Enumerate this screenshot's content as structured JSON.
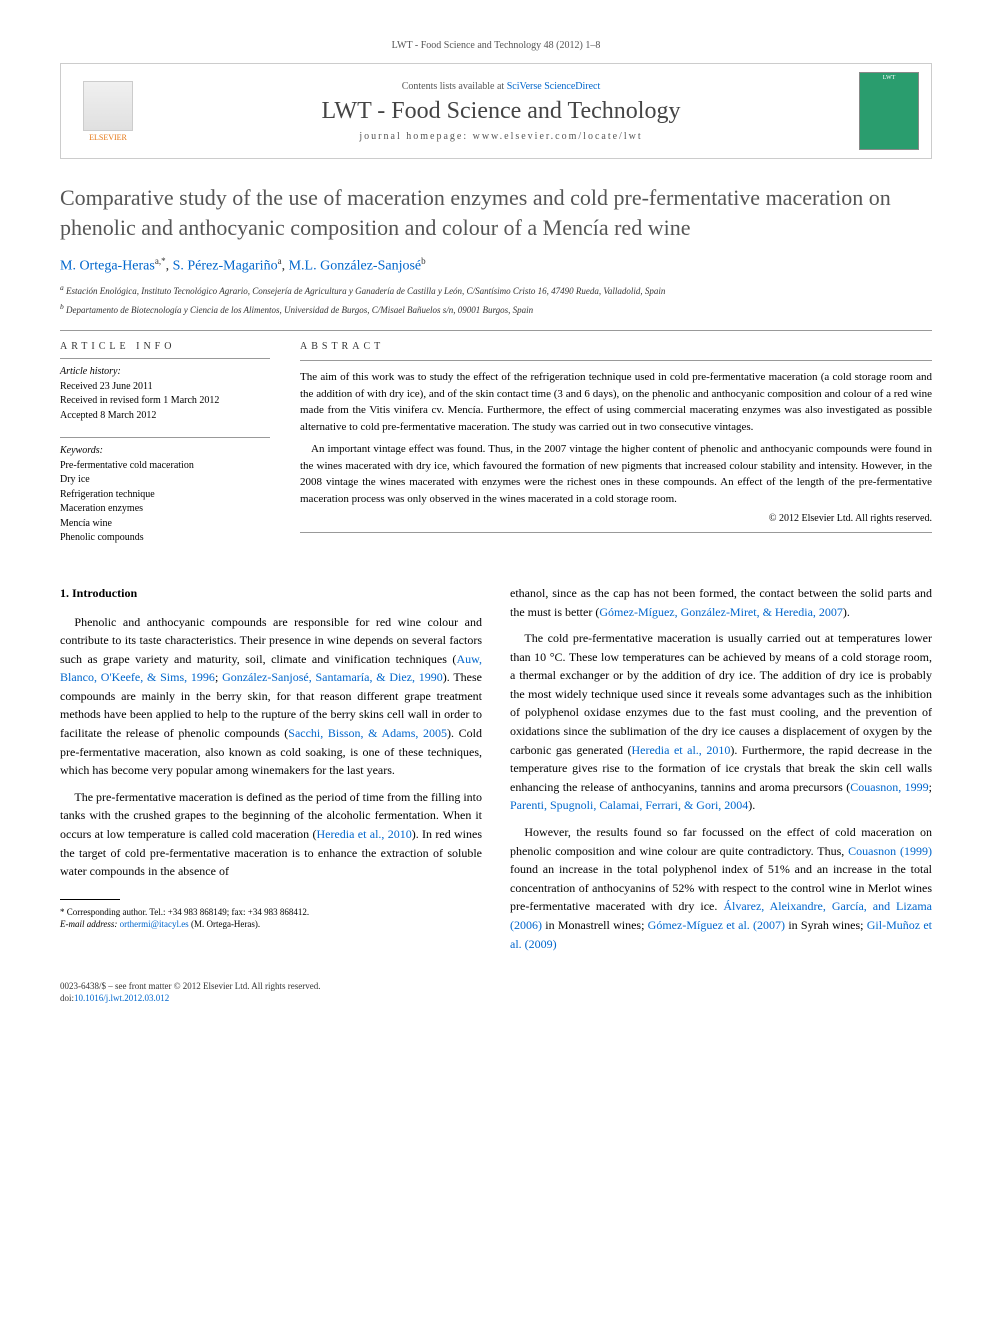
{
  "journal_ref": "LWT - Food Science and Technology 48 (2012) 1–8",
  "header": {
    "contents_prefix": "Contents lists available at ",
    "contents_link": "SciVerse ScienceDirect",
    "journal_name": "LWT - Food Science and Technology",
    "homepage_prefix": "journal homepage: ",
    "homepage_url": "www.elsevier.com/locate/lwt",
    "elsevier_label": "ELSEVIER",
    "cover_text": "LWT"
  },
  "title": "Comparative study of the use of maceration enzymes and cold pre-fermentative maceration on phenolic and anthocyanic composition and colour of a Mencía red wine",
  "authors_html": "M. Ortega-Heras",
  "author1": "M. Ortega-Heras",
  "author1_sup": "a,*",
  "author2": "S. Pérez-Magariño",
  "author2_sup": "a",
  "author3": "M.L. González-Sanjosé",
  "author3_sup": "b",
  "affil_a_sup": "a",
  "affil_a": "Estación Enológica, Instituto Tecnológico Agrario, Consejería de Agricultura y Ganadería de Castilla y León, C/Santísimo Cristo 16, 47490 Rueda, Valladolid, Spain",
  "affil_b_sup": "b",
  "affil_b": "Departamento de Biotecnología y Ciencia de los Alimentos, Universidad de Burgos, C/Misael Bañuelos s/n, 09001 Burgos, Spain",
  "article_info": {
    "heading": "ARTICLE INFO",
    "history_label": "Article history:",
    "received": "Received 23 June 2011",
    "revised": "Received in revised form 1 March 2012",
    "accepted": "Accepted 8 March 2012",
    "keywords_label": "Keywords:",
    "k1": "Pre-fermentative cold maceration",
    "k2": "Dry ice",
    "k3": "Refrigeration technique",
    "k4": "Maceration enzymes",
    "k5": "Mencía wine",
    "k6": "Phenolic compounds"
  },
  "abstract": {
    "heading": "ABSTRACT",
    "p1": "The aim of this work was to study the effect of the refrigeration technique used in cold pre-fermentative maceration (a cold storage room and the addition of with dry ice), and of the skin contact time (3 and 6 days), on the phenolic and anthocyanic composition and colour of a red wine made from the Vitis vinifera cv. Mencía. Furthermore, the effect of using commercial macerating enzymes was also investigated as possible alternative to cold pre-fermentative maceration. The study was carried out in two consecutive vintages.",
    "p2": "An important vintage effect was found. Thus, in the 2007 vintage the higher content of phenolic and anthocyanic compounds were found in the wines macerated with dry ice, which favoured the formation of new pigments that increased colour stability and intensity. However, in the 2008 vintage the wines macerated with enzymes were the richest ones in these compounds. An effect of the length of the pre-fermentative maceration process was only observed in the wines macerated in a cold storage room.",
    "copyright": "© 2012 Elsevier Ltd. All rights reserved."
  },
  "body": {
    "section_heading": "1. Introduction",
    "left_p1a": "Phenolic and anthocyanic compounds are responsible for red wine colour and contribute to its taste characteristics. Their presence in wine depends on several factors such as grape variety and maturity, soil, climate and vinification techniques (",
    "ref1": "Auw, Blanco, O'Keefe, & Sims, 1996",
    "left_p1b": "; ",
    "ref2": "González-Sanjosé, Santamaría, & Diez, 1990",
    "left_p1c": "). These compounds are mainly in the berry skin, for that reason different grape treatment methods have been applied to help to the rupture of the berry skins cell wall in order to facilitate the release of phenolic compounds (",
    "ref3": "Sacchi, Bisson, & Adams, 2005",
    "left_p1d": "). Cold pre-fermentative maceration, also known as cold soaking, is one of these techniques, which has become very popular among winemakers for the last years.",
    "left_p2a": "The pre-fermentative maceration is defined as the period of time from the filling into tanks with the crushed grapes to the beginning of the alcoholic fermentation. When it occurs at low temperature is called cold maceration (",
    "ref4": "Heredia et al., 2010",
    "left_p2b": "). In red wines the target of cold pre-fermentative maceration is to enhance the extraction of soluble water compounds in the absence of",
    "right_p1a": "ethanol, since as the cap has not been formed, the contact between the solid parts and the must is better (",
    "ref5": "Gómez-Míguez, González-Miret, & Heredia, 2007",
    "right_p1b": ").",
    "right_p2a": "The cold pre-fermentative maceration is usually carried out at temperatures lower than 10 °C. These low temperatures can be achieved by means of a cold storage room, a thermal exchanger or by the addition of dry ice. The addition of dry ice is probably the most widely technique used since it reveals some advantages such as the inhibition of polyphenol oxidase enzymes due to the fast must cooling, and the prevention of oxidations since the sublimation of the dry ice causes a displacement of oxygen by the carbonic gas generated (",
    "ref6": "Heredia et al., 2010",
    "right_p2b": "). Furthermore, the rapid decrease in the temperature gives rise to the formation of ice crystals that break the skin cell walls enhancing the release of anthocyanins, tannins and aroma precursors (",
    "ref7": "Couasnon, 1999",
    "right_p2c": "; ",
    "ref8": "Parenti, Spugnoli, Calamai, Ferrari, & Gori, 2004",
    "right_p2d": ").",
    "right_p3a": "However, the results found so far focussed on the effect of cold maceration on phenolic composition and wine colour are quite contradictory. Thus, ",
    "ref9": "Couasnon (1999)",
    "right_p3b": " found an increase in the total polyphenol index of 51% and an increase in the total concentration of anthocyanins of 52% with respect to the control wine in Merlot wines pre-fermentative macerated with dry ice. ",
    "ref10": "Álvarez, Aleixandre, García, and Lizama (2006)",
    "right_p3c": " in Monastrell wines; ",
    "ref11": "Gómez-Míguez et al. (2007)",
    "right_p3d": " in Syrah wines; ",
    "ref12": "Gil-Muñoz et al. (2009)"
  },
  "footnote": {
    "corr_label": "* Corresponding author. Tel.: +34 983 868149; fax: +34 983 868412.",
    "email_label": "E-mail address: ",
    "email": "orthermi@itacyl.es",
    "email_suffix": " (M. Ortega-Heras)."
  },
  "bottom": {
    "line1": "0023-6438/$ – see front matter © 2012 Elsevier Ltd. All rights reserved.",
    "doi_prefix": "doi:",
    "doi": "10.1016/j.lwt.2012.03.012"
  },
  "colors": {
    "link": "#0066cc",
    "elsevier_orange": "#e67817",
    "title_grey": "#565656"
  }
}
